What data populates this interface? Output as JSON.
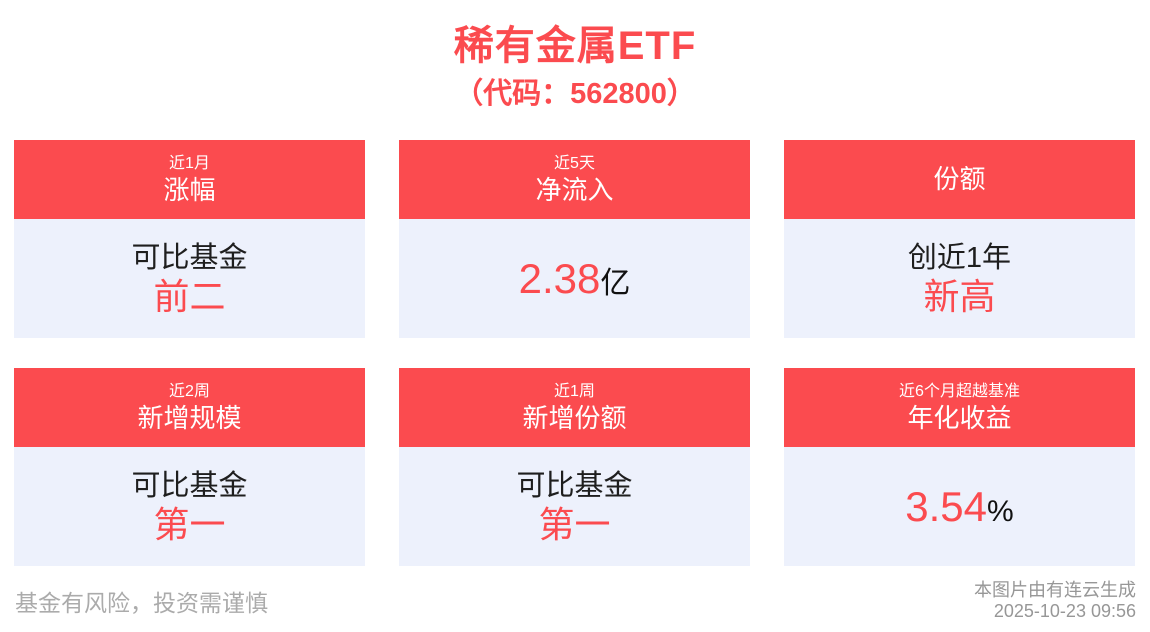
{
  "page": {
    "title": "稀有金属ETF",
    "subtitle": "（代码：562800）",
    "footer_left": "基金有风险，投资需谨慎",
    "footer_right_line1": "本图片由有连云生成",
    "footer_right_line2": "2025-10-23 09:56"
  },
  "colors": {
    "accent_red": "#fb4b4f",
    "card_body_bg": "#edf1fc",
    "text_dark": "#1e1e1e",
    "disclaimer_gray": "#ababab",
    "attribution_gray": "#979797",
    "background": "#ffffff"
  },
  "cards": [
    {
      "header_small": "近1月",
      "header_large": "涨幅",
      "body_line1": "可比基金",
      "body_line2": "前二"
    },
    {
      "header_small": "近5天",
      "header_large": "净流入",
      "value": "2.38",
      "value_suffix": "亿"
    },
    {
      "header_large": "份额",
      "body_line1": "创近1年",
      "body_line2": "新高"
    },
    {
      "header_small": "近2周",
      "header_large": "新增规模",
      "body_line1": "可比基金",
      "body_line2": "第一"
    },
    {
      "header_small": "近1周",
      "header_large": "新增份额",
      "body_line1": "可比基金",
      "body_line2": "第一"
    },
    {
      "header_small": "近6个月超越基准",
      "header_large": "年化收益",
      "value": "3.54",
      "value_suffix": "%"
    }
  ]
}
